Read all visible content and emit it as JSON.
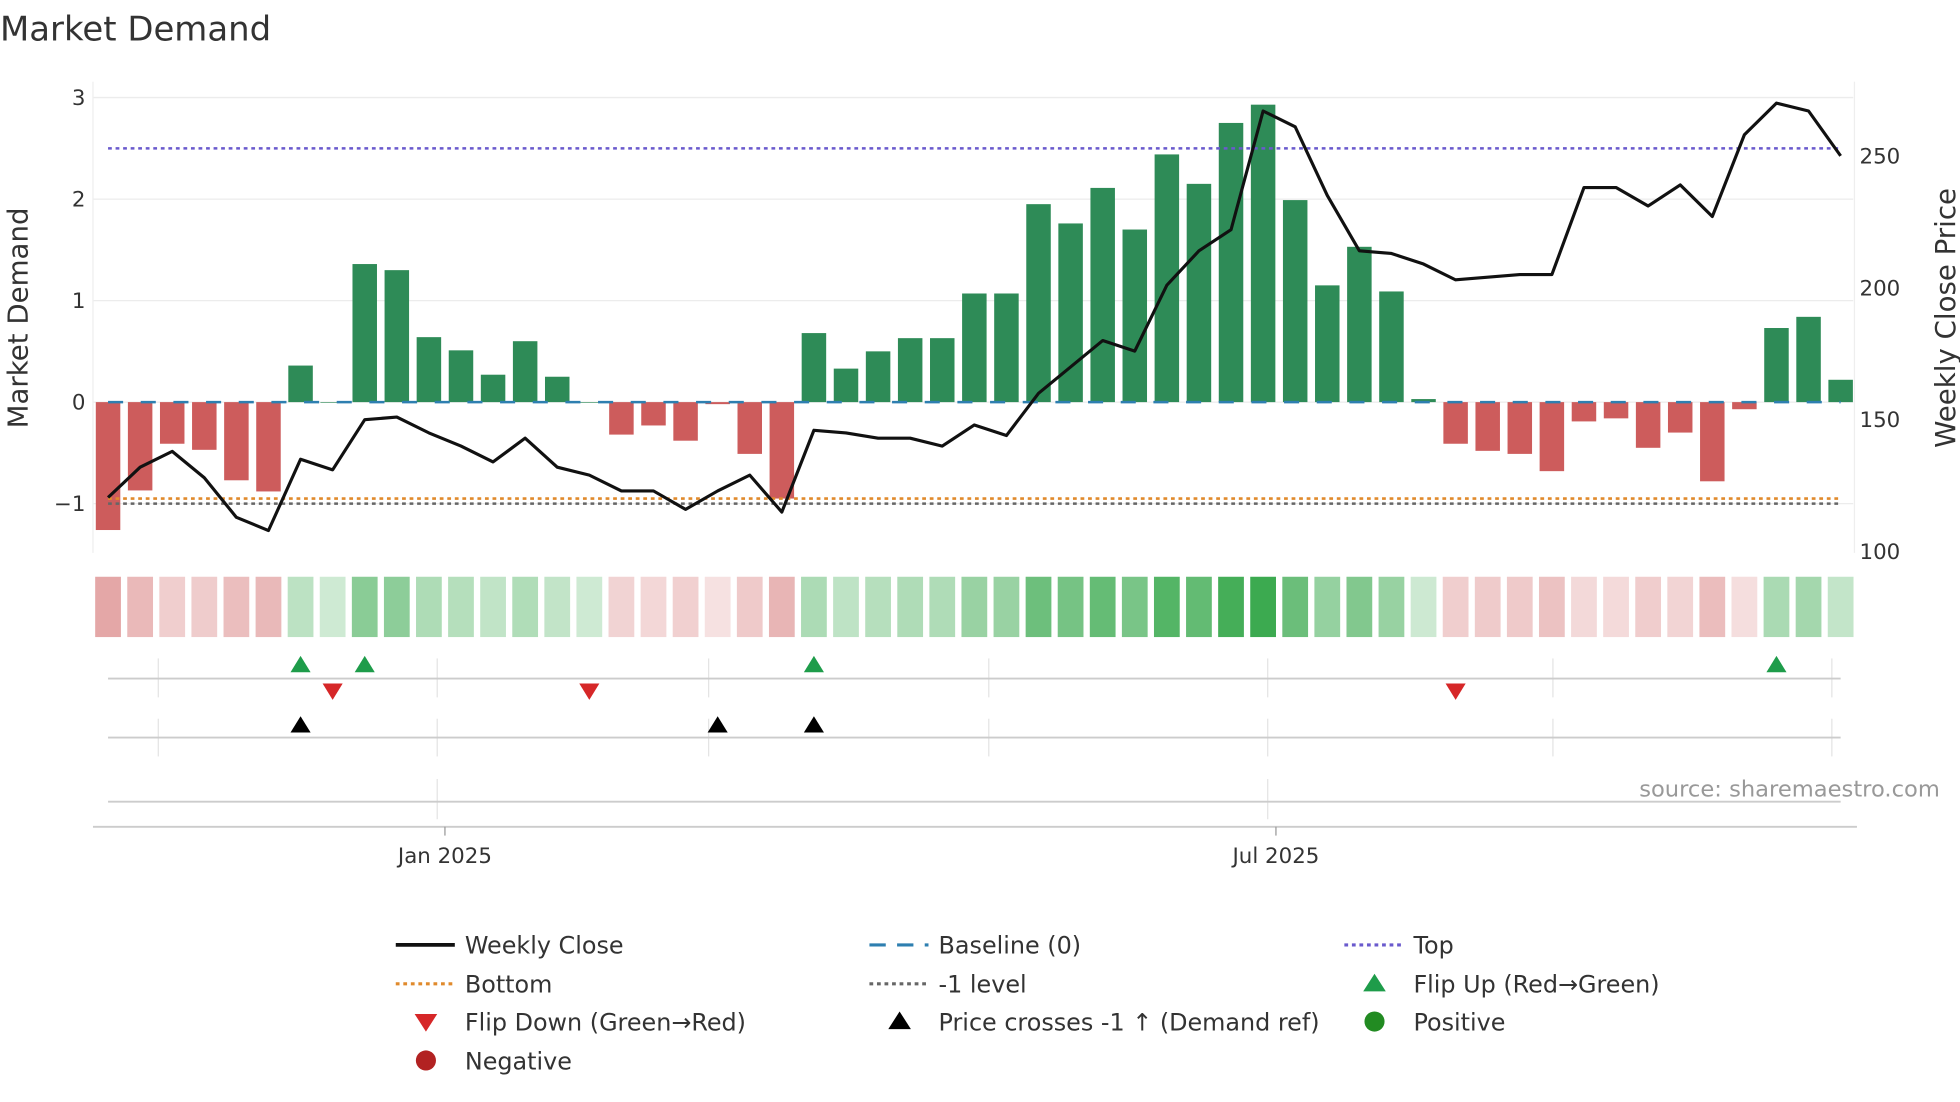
{
  "chart_data": {
    "type": "bar",
    "title": "Market Demand",
    "ylabel": "Market Demand",
    "y2label": "Weekly Close Price",
    "ylim": [
      -1.5,
      3.1
    ],
    "y2lim": [
      100,
      275
    ],
    "yticks": [
      3,
      2,
      1,
      0,
      -1
    ],
    "ytick_labels": [
      "3",
      "2",
      "1",
      "0",
      "−1"
    ],
    "y2ticks": [
      250,
      200,
      150,
      100
    ],
    "y2tick_labels": [
      "250",
      "200",
      "150",
      "100"
    ],
    "xtick_labels": [
      {
        "label": "Jan 2025",
        "week_index": 10.5
      },
      {
        "label": "Jul 2025",
        "week_index": 36.4
      }
    ],
    "source": "source: sharemaestro.com",
    "reference_lines": {
      "top": 2.5,
      "bottom": -0.95,
      "minus_one": -1,
      "baseline": 0
    },
    "demand": [
      -1.26,
      -0.87,
      -0.41,
      -0.47,
      -0.77,
      -0.88,
      0.36,
      0.0,
      1.36,
      1.3,
      0.64,
      0.51,
      0.27,
      0.6,
      0.25,
      0.0,
      -0.32,
      -0.23,
      -0.38,
      -0.02,
      -0.51,
      -0.95,
      0.68,
      0.33,
      0.5,
      0.63,
      0.63,
      1.07,
      1.07,
      1.95,
      1.76,
      2.11,
      1.7,
      2.44,
      2.15,
      2.75,
      2.93,
      1.99,
      1.15,
      1.53,
      1.09,
      0.03,
      -0.41,
      -0.48,
      -0.51,
      -0.68,
      -0.19,
      -0.16,
      -0.45,
      -0.3,
      -0.78,
      -0.07,
      0.73,
      0.84,
      0.22
    ],
    "weekly_close": [
      120.5,
      132,
      138,
      128,
      113,
      108,
      135,
      131,
      150,
      151,
      145,
      140,
      134,
      143,
      132,
      129,
      123,
      123,
      116,
      123,
      129,
      115,
      146,
      145,
      143,
      143,
      140,
      148,
      144,
      160,
      170,
      180,
      176,
      201,
      214,
      222,
      267,
      261,
      235,
      214,
      213,
      209,
      203,
      204,
      205,
      205,
      238,
      238,
      231,
      239,
      227,
      258,
      270,
      267,
      250
    ],
    "flip_up_weeks": [
      6,
      8,
      22,
      52
    ],
    "flip_down_weeks": [
      7,
      15,
      42
    ],
    "price_cross_weeks": [
      6,
      19,
      22
    ],
    "legend": [
      {
        "label": "Weekly Close",
        "kind": "line",
        "color": "#111111"
      },
      {
        "label": "Baseline (0)",
        "kind": "dash",
        "color": "#2e7fb0"
      },
      {
        "label": "Top",
        "kind": "dot",
        "color": "#6a5acd"
      },
      {
        "label": "Bottom",
        "kind": "dot",
        "color": "#e08a2c"
      },
      {
        "label": "-1 level",
        "kind": "dot",
        "color": "#666666"
      },
      {
        "label": "Flip Up (Red→Green)",
        "kind": "tri-up",
        "color": "#1e9c4a"
      },
      {
        "label": "Flip Down (Green→Red)",
        "kind": "tri-down",
        "color": "#d62728"
      },
      {
        "label": "Price crosses -1 ↑ (Demand ref)",
        "kind": "tri-up",
        "color": "#000000"
      },
      {
        "label": "Positive",
        "kind": "circle",
        "color": "#228b22"
      },
      {
        "label": "Negative",
        "kind": "circle",
        "color": "#b22222"
      }
    ],
    "colors": {
      "positive_bar": "#2e8b57",
      "negative_bar": "#cd5c5c"
    }
  }
}
